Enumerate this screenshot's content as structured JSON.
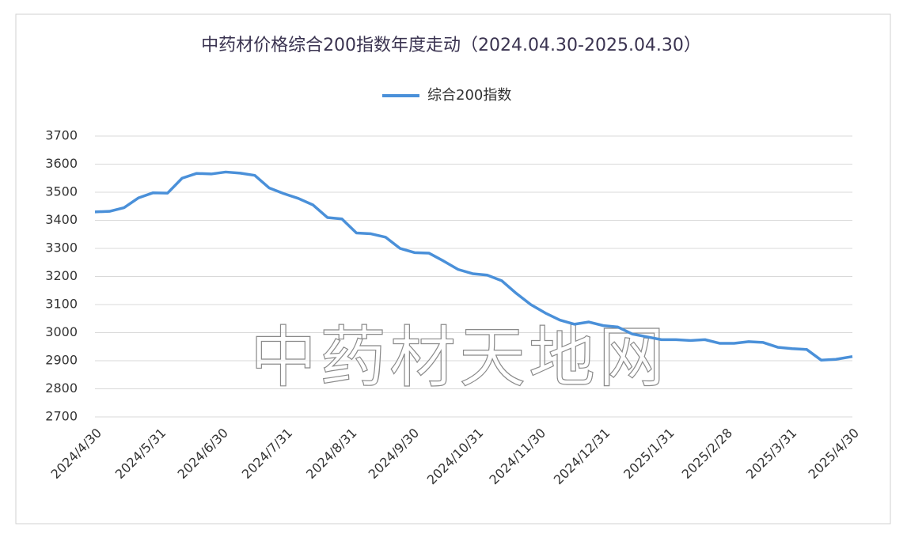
{
  "chart_data": {
    "type": "line",
    "title": "中药材价格综合200指数年度走动（2024.04.30-2025.04.30）",
    "watermark": "中药材天地网",
    "x": [
      "2024/4/30",
      "2024/5/7",
      "2024/5/14",
      "2024/5/21",
      "2024/5/28",
      "2024/6/4",
      "2024/6/11",
      "2024/6/18",
      "2024/6/25",
      "2024/7/2",
      "2024/7/9",
      "2024/7/16",
      "2024/7/23",
      "2024/7/30",
      "2024/8/6",
      "2024/8/13",
      "2024/8/20",
      "2024/8/27",
      "2024/9/3",
      "2024/9/10",
      "2024/9/17",
      "2024/9/24",
      "2024/10/1",
      "2024/10/8",
      "2024/10/15",
      "2024/10/22",
      "2024/10/29",
      "2024/11/5",
      "2024/11/12",
      "2024/11/19",
      "2024/11/26",
      "2024/12/3",
      "2024/12/10",
      "2024/12/17",
      "2024/12/24",
      "2024/12/31",
      "2025/1/7",
      "2025/1/14",
      "2025/1/21",
      "2025/1/28",
      "2025/2/4",
      "2025/2/11",
      "2025/2/18",
      "2025/2/25",
      "2025/3/4",
      "2025/3/11",
      "2025/3/18",
      "2025/3/25",
      "2025/4/1",
      "2025/4/8",
      "2025/4/15",
      "2025/4/22",
      "2025/4/30"
    ],
    "series": [
      {
        "name": "综合200指数",
        "color": "#4a90d9",
        "values": [
          3430,
          3432,
          3445,
          3480,
          3498,
          3497,
          3550,
          3567,
          3565,
          3572,
          3568,
          3560,
          3515,
          3495,
          3478,
          3455,
          3410,
          3405,
          3355,
          3352,
          3340,
          3300,
          3285,
          3283,
          3255,
          3225,
          3210,
          3205,
          3185,
          3140,
          3100,
          3070,
          3045,
          3030,
          3038,
          3025,
          3020,
          2995,
          2985,
          2975,
          2975,
          2972,
          2975,
          2962,
          2962,
          2968,
          2965,
          2948,
          2943,
          2940,
          2902,
          2905,
          2915
        ]
      }
    ],
    "xlim": [
      "2024/4/30",
      "2025/4/30"
    ],
    "xticks": [
      "2024/4/30",
      "2024/5/31",
      "2024/6/30",
      "2024/7/31",
      "2024/8/31",
      "2024/9/30",
      "2024/10/31",
      "2024/11/30",
      "2024/12/31",
      "2025/1/31",
      "2025/2/28",
      "2025/3/31",
      "2025/4/30"
    ],
    "ylim": [
      2700,
      3700
    ],
    "yticks": [
      2700,
      2800,
      2900,
      3000,
      3100,
      3200,
      3300,
      3400,
      3500,
      3600,
      3700
    ],
    "grid": true,
    "legend": "top"
  }
}
